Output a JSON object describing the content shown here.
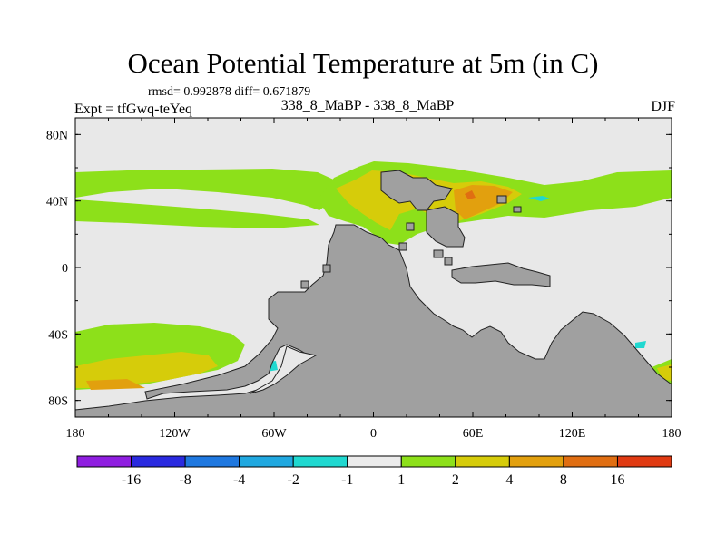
{
  "figure": {
    "title": "Ocean Potential Temperature at 5m (in C)",
    "stats": "rmsd= 0.992878 diff= 0.671879",
    "expt": "Expt = tfGwq-teYeq",
    "case": "338_8_MaBP - 338_8_MaBP",
    "season": "DJF"
  },
  "map": {
    "lat_labels": [
      "80N",
      "40N",
      "0",
      "40S",
      "80S"
    ],
    "lat_values": [
      80,
      40,
      0,
      -40,
      -80
    ],
    "lon_labels": [
      "180",
      "120W",
      "60W",
      "0",
      "60E",
      "120E",
      "180"
    ],
    "lon_values": [
      -180,
      -120,
      -60,
      0,
      60,
      120,
      180
    ],
    "land_color": "#a0a0a0",
    "ocean_color": "#e8e8e8"
  },
  "colorbar": {
    "colors": [
      "#8f1ee0",
      "#2a2ae0",
      "#1f78e0",
      "#20a8e0",
      "#20d8d0",
      "#ebebeb",
      "#8de01a",
      "#d6cc0a",
      "#e2a00e",
      "#e06e12",
      "#e03a12"
    ],
    "labels": [
      "-16",
      "-8",
      "-4",
      "-2",
      "-1",
      "1",
      "2",
      "4",
      "8",
      "16"
    ]
  },
  "chart_data": {
    "type": "filled-contour map",
    "title": "Ocean Potential Temperature at 5m (in C)",
    "variable": "ocean potential temperature difference at 5m",
    "units": "C",
    "season": "DJF",
    "x_range": [
      -180,
      180
    ],
    "y_range": [
      -90,
      90
    ],
    "levels": [
      -16,
      -8,
      -4,
      -2,
      -1,
      1,
      2,
      4,
      8,
      16
    ],
    "rmsd": 0.992878,
    "diff": 0.671879
  }
}
